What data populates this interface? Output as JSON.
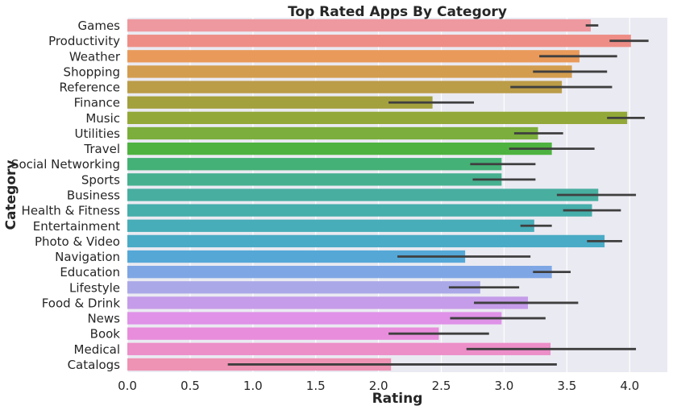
{
  "chart_data": {
    "type": "bar",
    "orientation": "horizontal",
    "title": "Top Rated Apps By Category",
    "xlabel": "Rating",
    "ylabel": "Category",
    "xlim": [
      0,
      4.3
    ],
    "xticks": [
      "0.0",
      "0.5",
      "1.0",
      "1.5",
      "2.0",
      "2.5",
      "3.0",
      "3.5",
      "4.0"
    ],
    "grid": true,
    "style_background": "#eaeaf2",
    "error_color": "#3f3f3f",
    "categories": [
      "Games",
      "Productivity",
      "Weather",
      "Shopping",
      "Reference",
      "Finance",
      "Music",
      "Utilities",
      "Travel",
      "Social Networking",
      "Sports",
      "Business",
      "Health & Fitness",
      "Entertainment",
      "Photo & Video",
      "Navigation",
      "Education",
      "Lifestyle",
      "Food & Drink",
      "News",
      "Book",
      "Medical",
      "Catalogs"
    ],
    "values": [
      3.69,
      4.01,
      3.6,
      3.54,
      3.46,
      2.43,
      3.98,
      3.27,
      3.38,
      2.98,
      2.98,
      3.75,
      3.7,
      3.24,
      3.8,
      2.69,
      3.38,
      2.81,
      3.19,
      2.98,
      2.48,
      3.37,
      2.1
    ],
    "error_low": [
      3.65,
      3.84,
      3.28,
      3.23,
      3.05,
      2.08,
      3.82,
      3.08,
      3.04,
      2.73,
      2.75,
      3.42,
      3.47,
      3.13,
      3.66,
      2.15,
      3.23,
      2.56,
      2.76,
      2.57,
      2.08,
      2.7,
      0.8
    ],
    "error_high": [
      3.75,
      4.15,
      3.9,
      3.82,
      3.86,
      2.76,
      4.12,
      3.47,
      3.72,
      3.25,
      3.25,
      4.05,
      3.93,
      3.38,
      3.94,
      3.21,
      3.53,
      3.12,
      3.59,
      3.33,
      2.88,
      4.05,
      3.42
    ],
    "colors": [
      "#ee999f",
      "#ee8d86",
      "#e99a5a",
      "#d39d4f",
      "#bb9c47",
      "#a3a03e",
      "#92a838",
      "#7bae3c",
      "#4eb240",
      "#44b176",
      "#46b08f",
      "#48aea0",
      "#46aeab",
      "#47adb8",
      "#4aabc6",
      "#55a8d6",
      "#7fa6e4",
      "#aba8e8",
      "#c59ce9",
      "#df92e8",
      "#e88ddb",
      "#ec8ec8",
      "#ee93b3"
    ]
  }
}
